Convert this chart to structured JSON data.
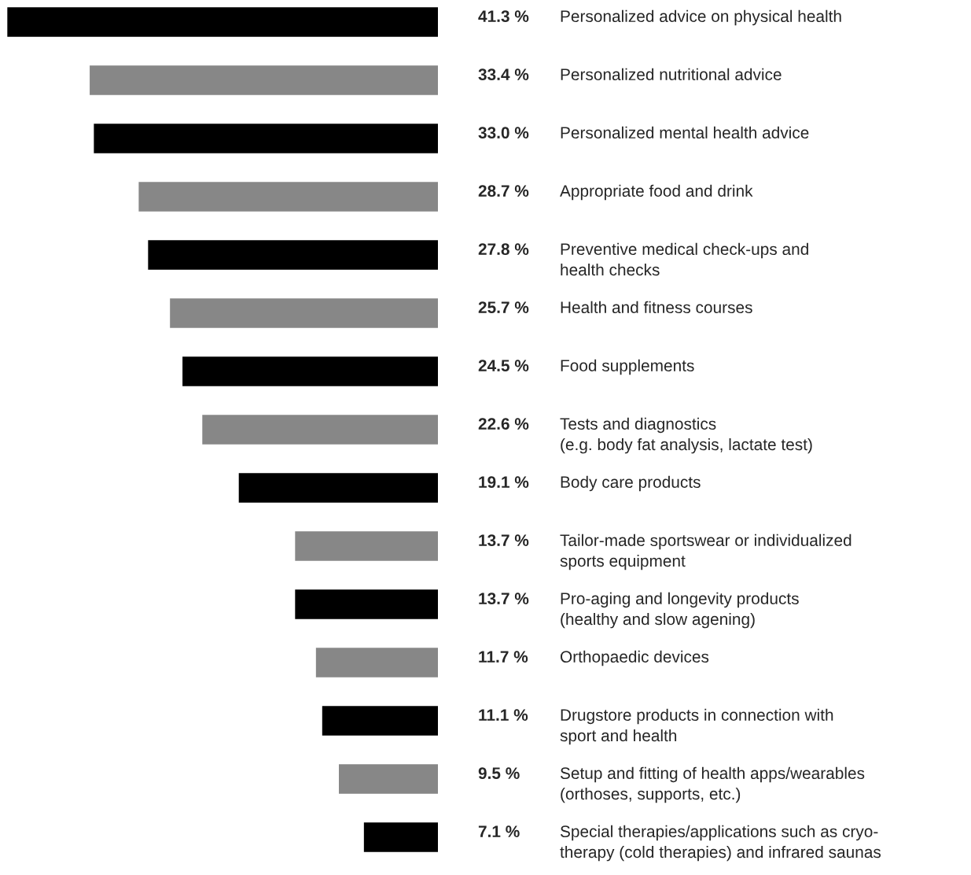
{
  "chart_data": {
    "type": "bar",
    "orientation": "horizontal",
    "categories": [
      "Personalized advice on physical health",
      "Personalized nutritional advice",
      "Personalized mental health advice",
      "Appropriate food and drink",
      "Preventive medical check-ups and\nhealth checks",
      "Health and fitness courses",
      "Food supplements",
      "Tests and diagnostics\n(e.g. body fat analysis, lactate test)",
      "Body care products",
      "Tailor-made sportswear or individualized\nsports equipment",
      "Pro-aging and longevity products\n(healthy and slow agening)",
      "Orthopaedic devices",
      "Drugstore products in connection with\nsport and health",
      "Setup and fitting of health apps/wearables\n(orthoses, supports, etc.)",
      "Special therapies/applications such as cryo-\ntherapy (cold therapies) and infrared saunas"
    ],
    "values": [
      41.3,
      33.4,
      33.0,
      28.7,
      27.8,
      25.7,
      24.5,
      22.6,
      19.1,
      13.7,
      13.7,
      11.7,
      11.1,
      9.5,
      7.1
    ],
    "value_labels": [
      "41.3 %",
      "33.4 %",
      "33.0 %",
      "28.7 %",
      "27.8 %",
      "25.7 %",
      "24.5 %",
      "22.6 %",
      "19.1 %",
      "13.7 %",
      "13.7 %",
      "11.7 %",
      "11.1 %",
      "9.5 %",
      "7.1 %"
    ],
    "colors": [
      "#000000",
      "#878787",
      "#000000",
      "#878787",
      "#000000",
      "#878787",
      "#000000",
      "#878787",
      "#000000",
      "#878787",
      "#000000",
      "#878787",
      "#000000",
      "#878787",
      "#000000"
    ]
  }
}
